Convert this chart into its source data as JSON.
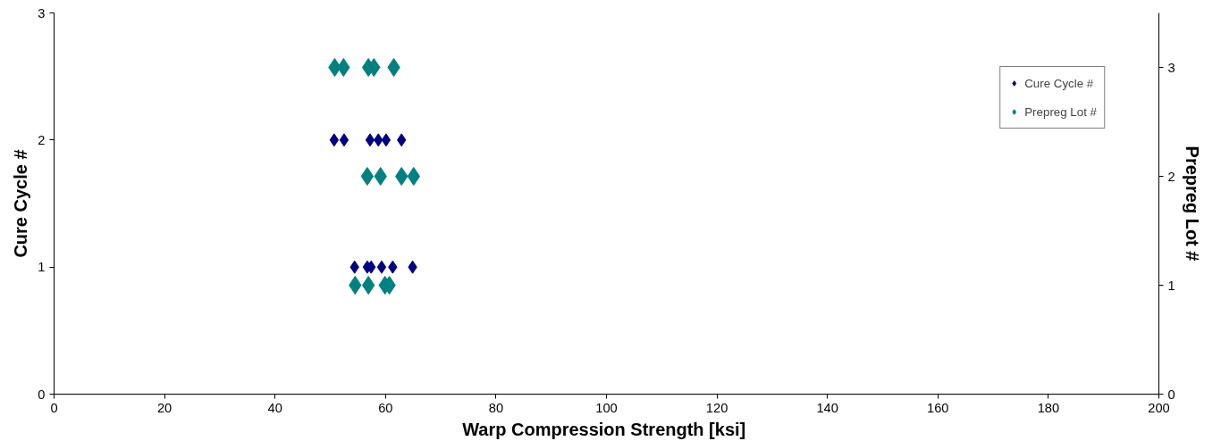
{
  "chart_data": {
    "type": "scatter",
    "xlabel": "Warp Compression Strength  [ksi]",
    "ylabel": "Cure Cycle #",
    "y2label": "Prepreg Lot #",
    "xlim": [
      0,
      200
    ],
    "xticks": [
      0,
      20,
      40,
      60,
      80,
      100,
      120,
      140,
      160,
      180,
      200
    ],
    "ylim": [
      0,
      3
    ],
    "yticks": [
      0,
      1,
      2,
      3
    ],
    "y2lim": [
      0,
      3.5
    ],
    "y2ticks": [
      0,
      1,
      2,
      3
    ],
    "grid": false,
    "legend": "top right",
    "marker": "diamond",
    "series": [
      {
        "name": "Cure Cycle #",
        "color": "#000080",
        "x": [
          54.4,
          56.7,
          57.4,
          59.3,
          61.3,
          64.9,
          50.7,
          52.5,
          57.2,
          58.7,
          60.1,
          62.9
        ],
        "values": [
          1,
          1,
          1,
          1,
          1,
          1,
          2,
          2,
          2,
          2,
          2,
          2
        ]
      },
      {
        "name": "Prepreg Lot #",
        "color": "#008080",
        "axis": "y2",
        "x": [
          54.5,
          56.9,
          59.9,
          60.7,
          56.7,
          59.1,
          62.9,
          65.1,
          50.8,
          52.4,
          56.9,
          57.9,
          61.5
        ],
        "values": [
          1,
          1,
          1,
          1,
          2,
          2,
          2,
          2,
          3,
          3,
          3,
          3,
          3
        ]
      }
    ]
  }
}
